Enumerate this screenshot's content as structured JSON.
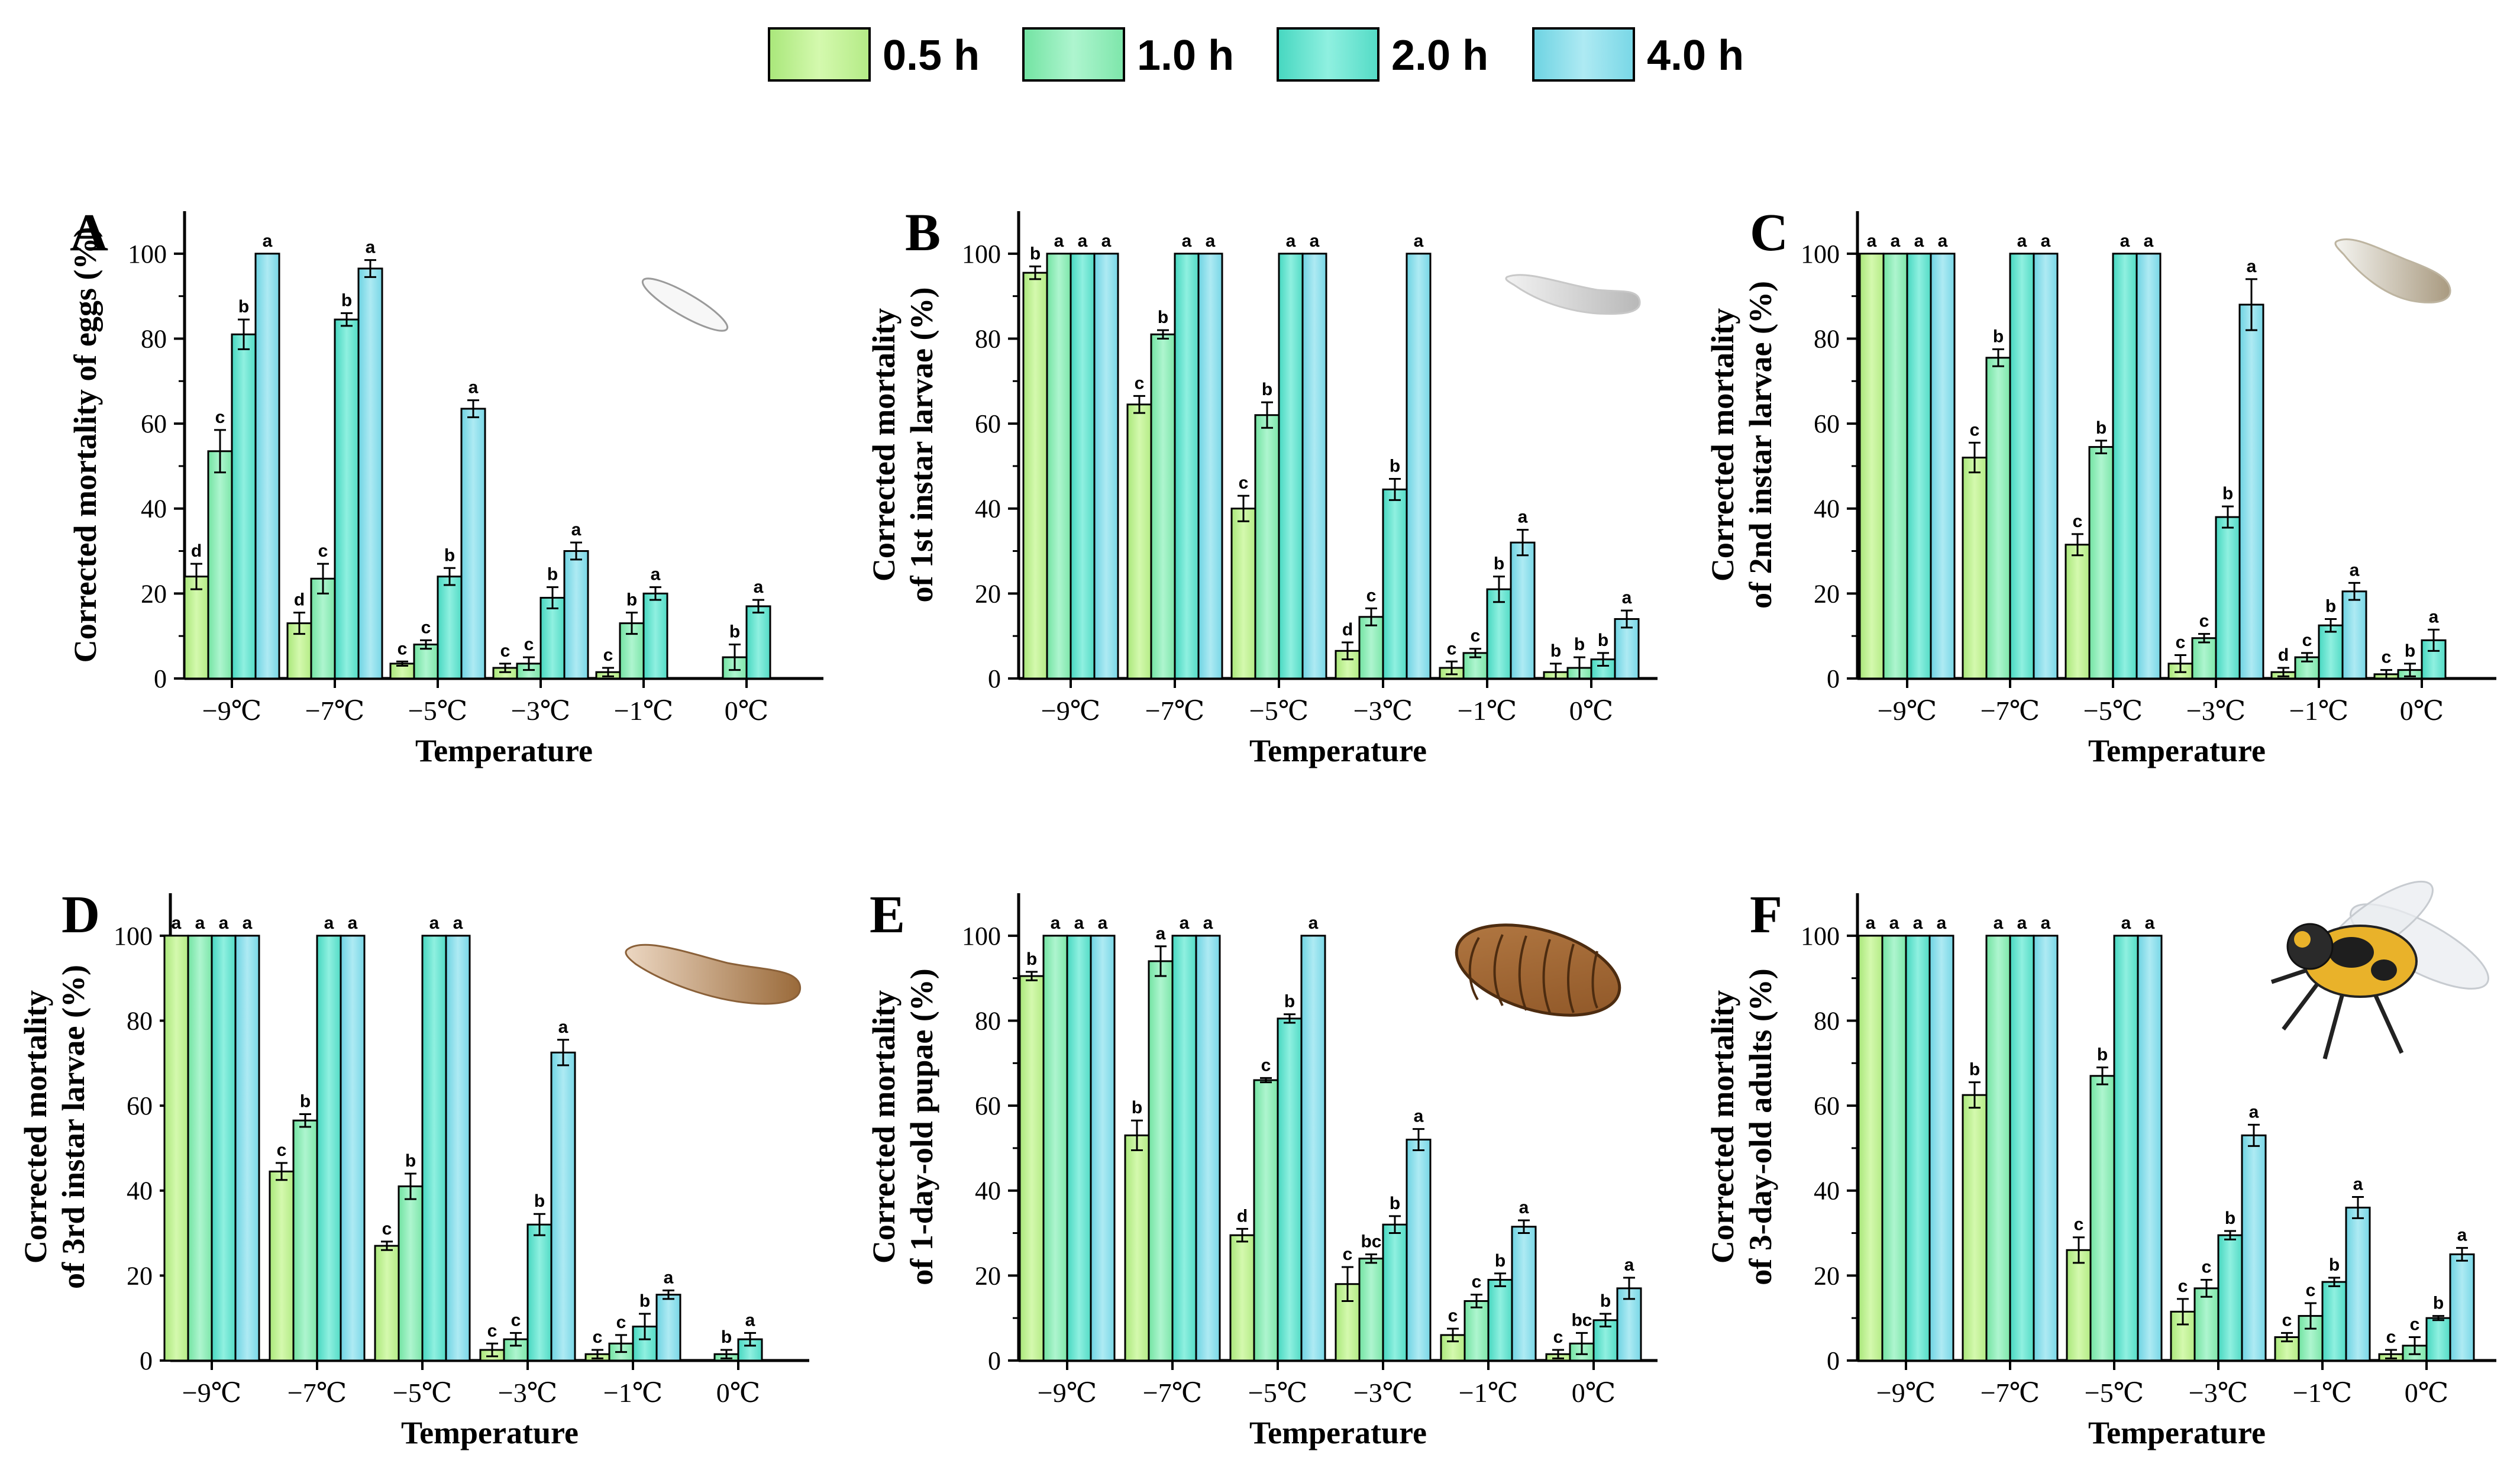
{
  "legend": [
    {
      "label": "0.5 h",
      "color": "#c6f59a"
    },
    {
      "label": "1.0 h",
      "color": "#93f0bd"
    },
    {
      "label": "2.0 h",
      "color": "#6ee5d2"
    },
    {
      "label": "4.0 h",
      "color": "#8ee0ea"
    }
  ],
  "chart_data": [
    {
      "type": "bar",
      "panel": "A",
      "title": "",
      "xlabel": "Temperature",
      "ylabel": "Corrected mortality of eggs (%)",
      "ylim": [
        0,
        110
      ],
      "yticks": [
        0,
        20,
        40,
        60,
        80,
        100
      ],
      "categories": [
        "−9℃",
        "−7℃",
        "−5℃",
        "−3℃",
        "−1℃",
        "0℃"
      ],
      "series": [
        {
          "name": "0.5 h",
          "values": [
            24,
            13,
            3.5,
            2.5,
            1.5,
            0
          ],
          "errors": [
            3,
            2.5,
            0.5,
            1,
            1,
            0
          ],
          "letters": [
            "d",
            "d",
            "c",
            "c",
            "c",
            ""
          ]
        },
        {
          "name": "1.0 h",
          "values": [
            53.5,
            23.5,
            8,
            3.5,
            13,
            5
          ],
          "errors": [
            5,
            3.5,
            1,
            1.5,
            2.5,
            3
          ],
          "letters": [
            "c",
            "c",
            "c",
            "c",
            "b",
            "b"
          ]
        },
        {
          "name": "2.0 h",
          "values": [
            81,
            84.5,
            24,
            19,
            20,
            17
          ],
          "errors": [
            3.5,
            1.5,
            2,
            2.5,
            1.5,
            1.5
          ],
          "letters": [
            "b",
            "b",
            "b",
            "b",
            "a",
            "a"
          ]
        },
        {
          "name": "4.0 h",
          "values": [
            100,
            96.5,
            63.5,
            30,
            null,
            null
          ],
          "errors": [
            0,
            2,
            2,
            2,
            0,
            0
          ],
          "letters": [
            "a",
            "a",
            "a",
            "a",
            "",
            ""
          ]
        }
      ]
    },
    {
      "type": "bar",
      "panel": "B",
      "title": "",
      "xlabel": "Temperature",
      "ylabel": "Corrected mortality of 1st instar larvae (%)",
      "ylim": [
        0,
        110
      ],
      "yticks": [
        0,
        20,
        40,
        60,
        80,
        100
      ],
      "categories": [
        "−9℃",
        "−7℃",
        "−5℃",
        "−3℃",
        "−1℃",
        "0℃"
      ],
      "series": [
        {
          "name": "0.5 h",
          "values": [
            95.5,
            64.5,
            40,
            6.5,
            2.5,
            1.5
          ],
          "errors": [
            1.5,
            2,
            3,
            2,
            1.5,
            2
          ],
          "letters": [
            "b",
            "c",
            "c",
            "d",
            "c",
            "b"
          ]
        },
        {
          "name": "1.0 h",
          "values": [
            100,
            81,
            62,
            14.5,
            6,
            2.5
          ],
          "errors": [
            0,
            1,
            3,
            2,
            1,
            2.5
          ],
          "letters": [
            "a",
            "b",
            "b",
            "c",
            "c",
            "b"
          ]
        },
        {
          "name": "2.0 h",
          "values": [
            100,
            100,
            100,
            44.5,
            21,
            4.5
          ],
          "errors": [
            0,
            0,
            0,
            2.5,
            3,
            1.5
          ],
          "letters": [
            "a",
            "a",
            "a",
            "b",
            "b",
            "b"
          ]
        },
        {
          "name": "4.0 h",
          "values": [
            100,
            100,
            100,
            100,
            32,
            14
          ],
          "errors": [
            0,
            0,
            0,
            0,
            3,
            2
          ],
          "letters": [
            "a",
            "a",
            "a",
            "a",
            "a",
            "a"
          ]
        }
      ]
    },
    {
      "type": "bar",
      "panel": "C",
      "title": "",
      "xlabel": "Temperature",
      "ylabel": "Corrected mortality of 2nd instar larvae (%)",
      "ylim": [
        0,
        110
      ],
      "yticks": [
        0,
        20,
        40,
        60,
        80,
        100
      ],
      "categories": [
        "−9℃",
        "−7℃",
        "−5℃",
        "−3℃",
        "−1℃",
        "0℃"
      ],
      "series": [
        {
          "name": "0.5 h",
          "values": [
            100,
            52,
            31.5,
            3.5,
            1.5,
            1
          ],
          "errors": [
            0,
            3.5,
            2.5,
            2,
            1,
            1
          ],
          "letters": [
            "a",
            "c",
            "c",
            "c",
            "d",
            "c"
          ]
        },
        {
          "name": "1.0 h",
          "values": [
            100,
            75.5,
            54.5,
            9.5,
            5,
            2
          ],
          "errors": [
            0,
            2,
            1.5,
            1,
            1,
            1.5
          ],
          "letters": [
            "a",
            "b",
            "b",
            "c",
            "c",
            "b"
          ]
        },
        {
          "name": "2.0 h",
          "values": [
            100,
            100,
            100,
            38,
            12.5,
            9
          ],
          "errors": [
            0,
            0,
            0,
            2.5,
            1.5,
            2.5
          ],
          "letters": [
            "a",
            "a",
            "a",
            "b",
            "b",
            "a"
          ]
        },
        {
          "name": "4.0 h",
          "values": [
            100,
            100,
            100,
            88,
            20.5,
            null
          ],
          "errors": [
            0,
            0,
            0,
            6,
            2,
            0
          ],
          "letters": [
            "a",
            "a",
            "a",
            "a",
            "a",
            ""
          ]
        }
      ]
    },
    {
      "type": "bar",
      "panel": "D",
      "title": "",
      "xlabel": "Temperature",
      "ylabel": "Corrected mortality of 3rd instar larvae (%)",
      "ylim": [
        0,
        110
      ],
      "yticks": [
        0,
        20,
        40,
        60,
        80,
        100
      ],
      "categories": [
        "−9℃",
        "−7℃",
        "−5℃",
        "−3℃",
        "−1℃",
        "0℃"
      ],
      "series": [
        {
          "name": "0.5 h",
          "values": [
            100,
            44.5,
            27,
            2.5,
            1.5,
            0
          ],
          "errors": [
            0,
            2,
            1,
            1.5,
            1,
            0
          ],
          "letters": [
            "a",
            "c",
            "c",
            "c",
            "c",
            ""
          ]
        },
        {
          "name": "1.0 h",
          "values": [
            100,
            56.5,
            41,
            5,
            4,
            1.5
          ],
          "errors": [
            0,
            1.5,
            3,
            1.5,
            2,
            1
          ],
          "letters": [
            "a",
            "b",
            "b",
            "c",
            "c",
            "b"
          ]
        },
        {
          "name": "2.0 h",
          "values": [
            100,
            100,
            100,
            32,
            8,
            5
          ],
          "errors": [
            0,
            0,
            0,
            2.5,
            3,
            1.5
          ],
          "letters": [
            "a",
            "a",
            "a",
            "b",
            "b",
            "a"
          ]
        },
        {
          "name": "4.0 h",
          "values": [
            100,
            100,
            100,
            72.5,
            15.5,
            null
          ],
          "errors": [
            0,
            0,
            0,
            3,
            1,
            0
          ],
          "letters": [
            "a",
            "a",
            "a",
            "a",
            "a",
            ""
          ]
        }
      ]
    },
    {
      "type": "bar",
      "panel": "E",
      "title": "",
      "xlabel": "Temperature",
      "ylabel": "Corrected mortality of 1-day-old pupae (%)",
      "ylim": [
        0,
        110
      ],
      "yticks": [
        0,
        20,
        40,
        60,
        80,
        100
      ],
      "categories": [
        "−9℃",
        "−7℃",
        "−5℃",
        "−3℃",
        "−1℃",
        "0℃"
      ],
      "series": [
        {
          "name": "0.5 h",
          "values": [
            90.5,
            53,
            29.5,
            18,
            6,
            1.5
          ],
          "errors": [
            1,
            3.5,
            1.5,
            4,
            1.5,
            1
          ],
          "letters": [
            "b",
            "b",
            "d",
            "c",
            "c",
            "c"
          ]
        },
        {
          "name": "1.0 h",
          "values": [
            100,
            94,
            66,
            24,
            14,
            4
          ],
          "errors": [
            0,
            3.5,
            0.5,
            1,
            1.5,
            2.5
          ],
          "letters": [
            "a",
            "a",
            "c",
            "bc",
            "c",
            "bc"
          ]
        },
        {
          "name": "2.0 h",
          "values": [
            100,
            100,
            80.5,
            32,
            19,
            9.5
          ],
          "errors": [
            0,
            0,
            1,
            2,
            1.5,
            1.5
          ],
          "letters": [
            "a",
            "a",
            "b",
            "b",
            "b",
            "b"
          ]
        },
        {
          "name": "4.0 h",
          "values": [
            100,
            100,
            100,
            52,
            31.5,
            17
          ],
          "errors": [
            0,
            0,
            0,
            2.5,
            1.5,
            2.5
          ],
          "letters": [
            "a",
            "a",
            "a",
            "a",
            "a",
            "a"
          ]
        }
      ]
    },
    {
      "type": "bar",
      "panel": "F",
      "title": "",
      "xlabel": "Temperature",
      "ylabel": "Corrected mortality of 3-day-old adults (%)",
      "ylim": [
        0,
        110
      ],
      "yticks": [
        0,
        20,
        40,
        60,
        80,
        100
      ],
      "categories": [
        "−9℃",
        "−7℃",
        "−5℃",
        "−3℃",
        "−1℃",
        "0℃"
      ],
      "series": [
        {
          "name": "0.5 h",
          "values": [
            100,
            62.5,
            26,
            11.5,
            5.5,
            1.5
          ],
          "errors": [
            0,
            3,
            3,
            3,
            1,
            1
          ],
          "letters": [
            "a",
            "b",
            "c",
            "c",
            "c",
            "c"
          ]
        },
        {
          "name": "1.0 h",
          "values": [
            100,
            100,
            67,
            17,
            10.5,
            3.5
          ],
          "errors": [
            0,
            0,
            2,
            2,
            3,
            2
          ],
          "letters": [
            "a",
            "a",
            "b",
            "c",
            "c",
            "c"
          ]
        },
        {
          "name": "2.0 h",
          "values": [
            100,
            100,
            100,
            29.5,
            18.5,
            10
          ],
          "errors": [
            0,
            0,
            0,
            1,
            1,
            0.5
          ],
          "letters": [
            "a",
            "a",
            "a",
            "b",
            "b",
            "b"
          ]
        },
        {
          "name": "4.0 h",
          "values": [
            100,
            100,
            100,
            53,
            36,
            25
          ],
          "errors": [
            0,
            0,
            0,
            2.5,
            2.5,
            1.5
          ],
          "letters": [
            "a",
            "a",
            "a",
            "a",
            "a",
            "a"
          ]
        }
      ]
    }
  ]
}
